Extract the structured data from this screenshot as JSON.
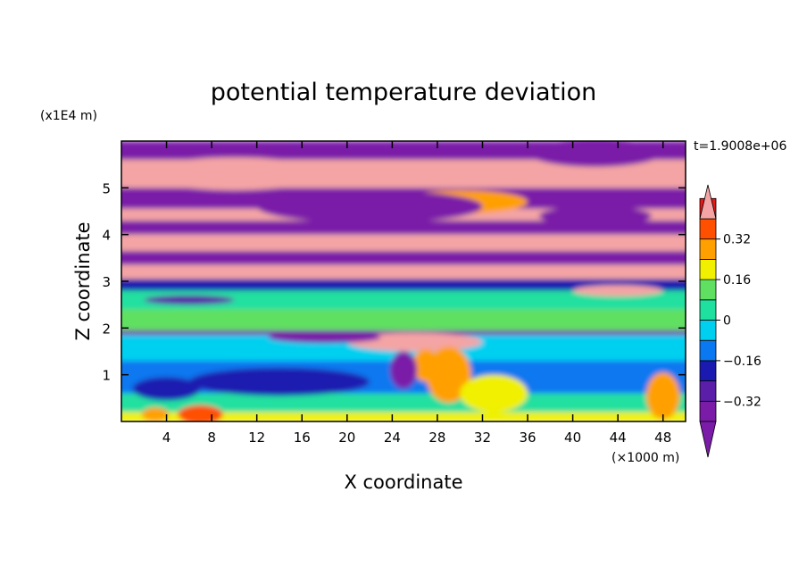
{
  "chart_data": {
    "type": "heatmap",
    "title": "potential temperature deviation",
    "xlabel": "X coordinate",
    "ylabel": "Z coordinate",
    "x_unit": "(×1000 m)",
    "y_unit": "(x1E4 m)",
    "time_label": "t=1.9008e+06",
    "xlim": [
      0,
      50
    ],
    "ylim": [
      0,
      6
    ],
    "x_ticks": [
      4,
      8,
      12,
      16,
      20,
      24,
      28,
      32,
      36,
      40,
      44,
      48
    ],
    "y_ticks": [
      1,
      2,
      3,
      4,
      5
    ],
    "colorbar": {
      "levels": [
        -0.4,
        -0.32,
        -0.24,
        -0.16,
        -0.08,
        0,
        0.08,
        0.16,
        0.24,
        0.32,
        0.4
      ],
      "tick_labels": [
        "0.32",
        "0.16",
        "0",
        "−0.16",
        "−0.32"
      ],
      "tick_values": [
        0.32,
        0.16,
        0,
        -0.16,
        -0.32
      ],
      "colors_low_to_high": [
        "#7a1ca8",
        "#5a1ea8",
        "#1a1ab0",
        "#0a78f0",
        "#00d0f0",
        "#20e0a0",
        "#60e060",
        "#f0f000",
        "#ffa000",
        "#ff5000",
        "#e81818"
      ],
      "over_color": "#f4a4a4",
      "under_color": "#7a1ca8"
    },
    "field_bands": [
      {
        "z0": 5.6,
        "z1": 6.0,
        "value": -0.45
      },
      {
        "z0": 5.0,
        "z1": 5.6,
        "value": 0.45
      },
      {
        "z0": 4.55,
        "z1": 5.0,
        "value": -0.45
      },
      {
        "z0": 4.3,
        "z1": 4.55,
        "value": 0.45
      },
      {
        "z0": 4.0,
        "z1": 4.3,
        "value": -0.45
      },
      {
        "z0": 3.65,
        "z1": 4.0,
        "value": 0.45
      },
      {
        "z0": 3.35,
        "z1": 3.65,
        "value": -0.45
      },
      {
        "z0": 3.05,
        "z1": 3.35,
        "value": 0.45
      },
      {
        "z0": 2.8,
        "z1": 3.05,
        "value": -0.2
      },
      {
        "z0": 2.4,
        "z1": 2.8,
        "value": 0.02
      },
      {
        "z0": 1.95,
        "z1": 2.4,
        "value": 0.1
      },
      {
        "z0": 1.85,
        "z1": 1.95,
        "value": -0.45
      },
      {
        "z0": 1.3,
        "z1": 1.85,
        "value": -0.05
      },
      {
        "z0": 0.6,
        "z1": 1.3,
        "value": -0.12
      },
      {
        "z0": 0.2,
        "z1": 0.6,
        "value": 0.05
      },
      {
        "z0": 0.0,
        "z1": 0.2,
        "value": 0.2
      }
    ],
    "field_features": [
      {
        "x": 10,
        "z": 5.3,
        "rx": 8,
        "rz": 0.35,
        "value": 0.45
      },
      {
        "x": 42,
        "z": 5.75,
        "rx": 6,
        "rz": 0.3,
        "value": -0.45
      },
      {
        "x": 30,
        "z": 4.7,
        "rx": 6,
        "rz": 0.25,
        "value": 0.3
      },
      {
        "x": 22,
        "z": 4.6,
        "rx": 10,
        "rz": 0.35,
        "value": -0.45
      },
      {
        "x": 42,
        "z": 4.4,
        "rx": 5,
        "rz": 0.2,
        "value": -0.45
      },
      {
        "x": 26,
        "z": 1.7,
        "rx": 6,
        "rz": 0.2,
        "value": 0.45
      },
      {
        "x": 27,
        "z": 1.2,
        "rx": 1.2,
        "rz": 0.35,
        "value": 0.3
      },
      {
        "x": 29,
        "z": 1.0,
        "rx": 2,
        "rz": 0.6,
        "value": 0.25
      },
      {
        "x": 25,
        "z": 1.1,
        "rx": 1.2,
        "rz": 0.4,
        "value": -0.35
      },
      {
        "x": 18,
        "z": 1.8,
        "rx": 5,
        "rz": 0.12,
        "value": -0.45
      },
      {
        "x": 33,
        "z": 0.6,
        "rx": 3,
        "rz": 0.4,
        "value": 0.2
      },
      {
        "x": 48,
        "z": 0.55,
        "rx": 1.5,
        "rz": 0.5,
        "value": 0.3
      },
      {
        "x": 7,
        "z": 0.15,
        "rx": 2,
        "rz": 0.2,
        "value": 0.35
      },
      {
        "x": 3,
        "z": 0.15,
        "rx": 1.2,
        "rz": 0.15,
        "value": 0.3
      },
      {
        "x": 44,
        "z": 2.8,
        "rx": 4,
        "rz": 0.12,
        "value": 0.45
      },
      {
        "x": 6,
        "z": 2.6,
        "rx": 4,
        "rz": 0.1,
        "value": -0.3
      },
      {
        "x": 14,
        "z": 0.85,
        "rx": 8,
        "rz": 0.3,
        "value": -0.18
      },
      {
        "x": 4,
        "z": 0.7,
        "rx": 3,
        "rz": 0.25,
        "value": -0.2
      }
    ]
  }
}
